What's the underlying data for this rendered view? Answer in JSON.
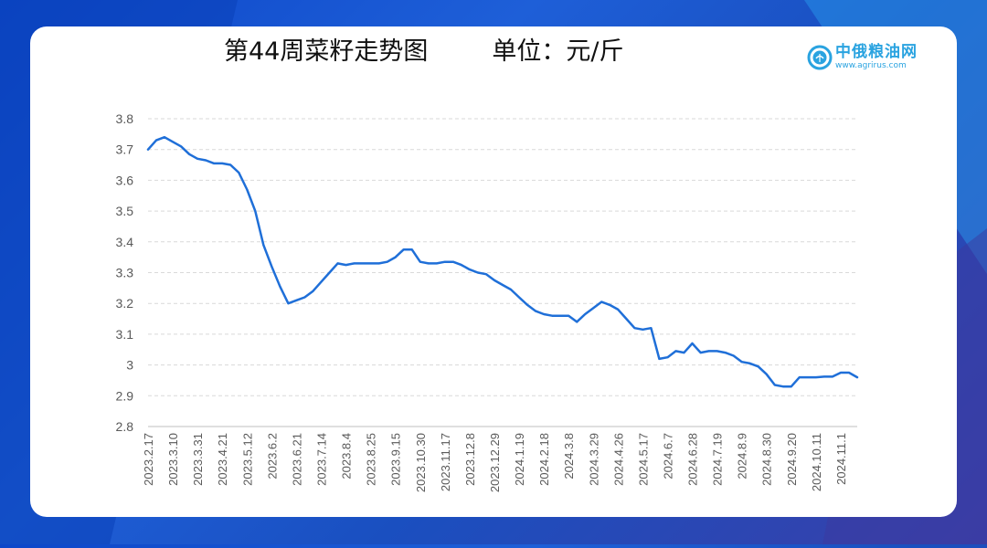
{
  "header": {
    "title": "第44周菜籽走势图",
    "unit": "单位：元/斤"
  },
  "logo": {
    "icon": "wheat-circle-logo-icon",
    "name": "中俄粮油网",
    "url": "www.agrirus.com"
  },
  "colors": {
    "line": "#1f6fd8",
    "grid": "#d9d9d9",
    "axis": "#bfbfbf",
    "text": "#595959"
  },
  "chart_data": {
    "type": "line",
    "title": "第44周菜籽走势图",
    "ylabel": "",
    "xlabel": "",
    "ylim": [
      2.8,
      3.8
    ],
    "yticks": [
      2.8,
      2.9,
      3,
      3.1,
      3.2,
      3.3,
      3.4,
      3.5,
      3.6,
      3.7,
      3.8
    ],
    "ytick_labels": [
      "2.8",
      "2.9",
      "3",
      "3.1",
      "3.2",
      "3.3",
      "3.4",
      "3.5",
      "3.6",
      "3.7",
      "3.8"
    ],
    "xtick_labels": [
      "2023.2.17",
      "2023.3.10",
      "2023.3.31",
      "2023.4.21",
      "2023.5.12",
      "2023.6.2",
      "2023.6.21",
      "2023.7.14",
      "2023.8.4",
      "2023.8.25",
      "2023.9.15",
      "2023.10.30",
      "2023.11.17",
      "2023.12.8",
      "2023.12.29",
      "2024.1.19",
      "2024.2.18",
      "2024.3.8",
      "2024.3.29",
      "2024.4.26",
      "2024.5.17",
      "2024.6.7",
      "2024.6.28",
      "2024.7.19",
      "2024.8.9",
      "2024.8.30",
      "2024.9.20",
      "2024.10.11",
      "2024.11.1"
    ],
    "xtick_every": 3,
    "grid": "horizontal dashed",
    "legend": "none",
    "series": [
      {
        "values": [
          3.7,
          3.73,
          3.74,
          3.725,
          3.71,
          3.685,
          3.67,
          3.665,
          3.655,
          3.655,
          3.65,
          3.625,
          3.57,
          3.5,
          3.39,
          3.32,
          3.255,
          3.2,
          3.21,
          3.22,
          3.24,
          3.27,
          3.3,
          3.33,
          3.325,
          3.33,
          3.33,
          3.33,
          3.33,
          3.335,
          3.35,
          3.375,
          3.375,
          3.335,
          3.33,
          3.33,
          3.335,
          3.335,
          3.325,
          3.31,
          3.3,
          3.295,
          3.275,
          3.26,
          3.245,
          3.22,
          3.195,
          3.175,
          3.165,
          3.16,
          3.16,
          3.16,
          3.14,
          3.165,
          3.185,
          3.205,
          3.195,
          3.18,
          3.15,
          3.12,
          3.115,
          3.12,
          3.02,
          3.025,
          3.045,
          3.04,
          3.07,
          3.04,
          3.045,
          3.045,
          3.04,
          3.03,
          3.01,
          3.005,
          2.995,
          2.97,
          2.935,
          2.93,
          2.93,
          2.96,
          2.96,
          2.96,
          2.962,
          2.962,
          2.975,
          2.975,
          2.96
        ]
      }
    ]
  }
}
